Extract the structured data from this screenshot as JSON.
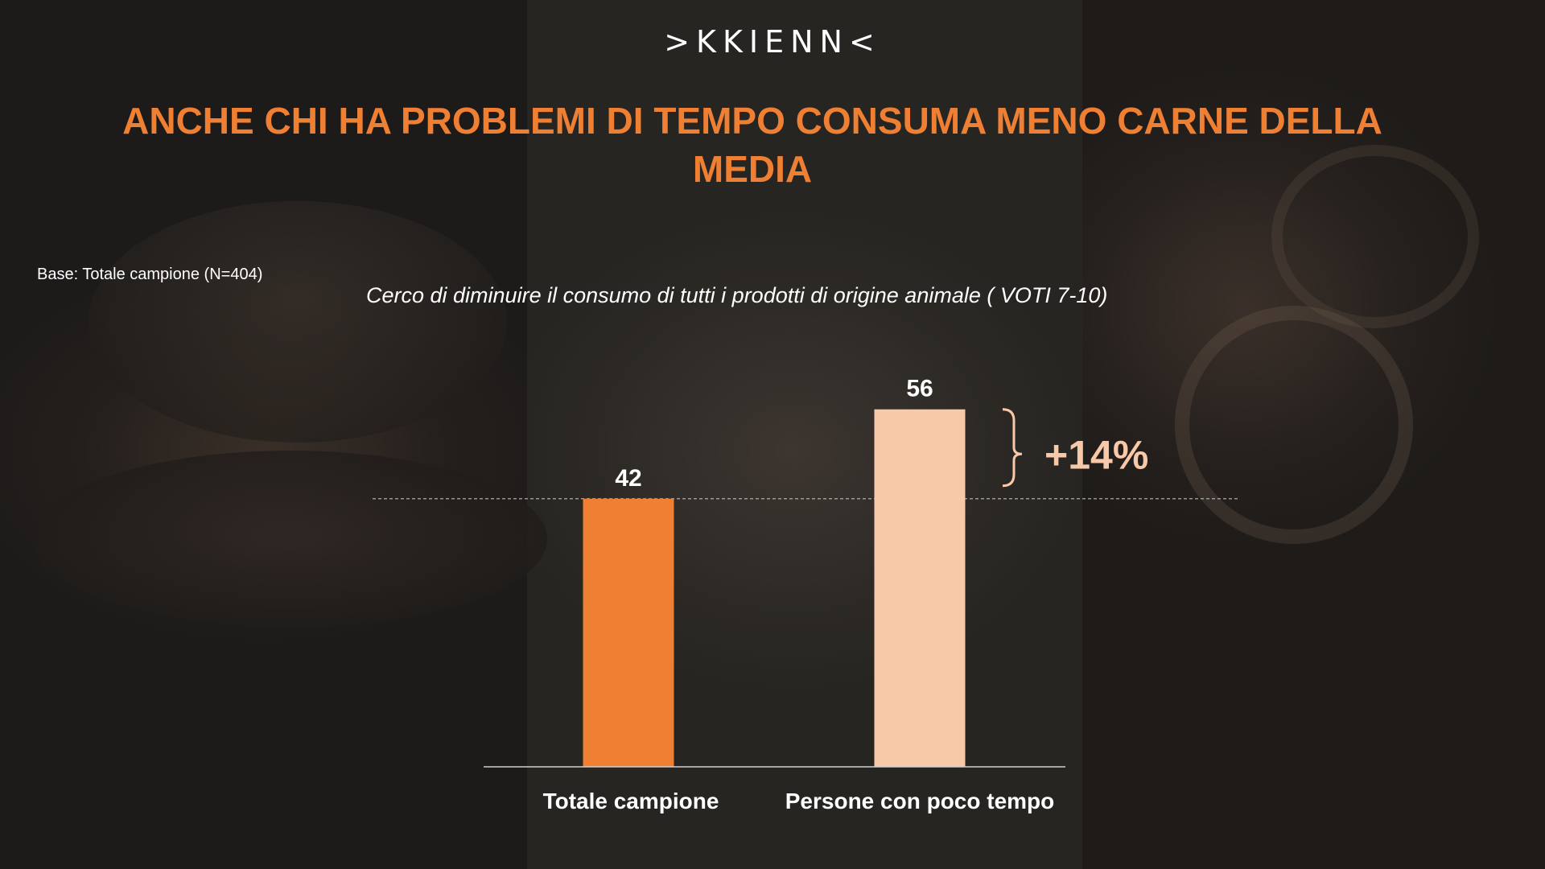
{
  "logo": ">KKIENN<",
  "title": "ANCHE CHI HA PROBLEMI DI TEMPO CONSUMA MENO CARNE DELLA MEDIA",
  "base_note": "Base: Totale campione (N=404)",
  "colors": {
    "accent": "#ee7f33",
    "bar_total": "#ee7f33",
    "bar_people": "#f8c9a9",
    "text": "#ffffff"
  },
  "chart_data": {
    "type": "bar",
    "title": "Cerco di diminuire il consumo di tutti i prodotti di origine animale ( VOTI 7-10)",
    "categories": [
      "Totale campione",
      "Persone con poco tempo"
    ],
    "values": [
      42,
      56
    ],
    "data_labels": [
      "42",
      "56"
    ],
    "reference_line": {
      "value": 42,
      "style": "dashed"
    },
    "annotation": "+14%",
    "ylim": [
      0,
      60
    ],
    "grid": false,
    "legend": "none"
  }
}
